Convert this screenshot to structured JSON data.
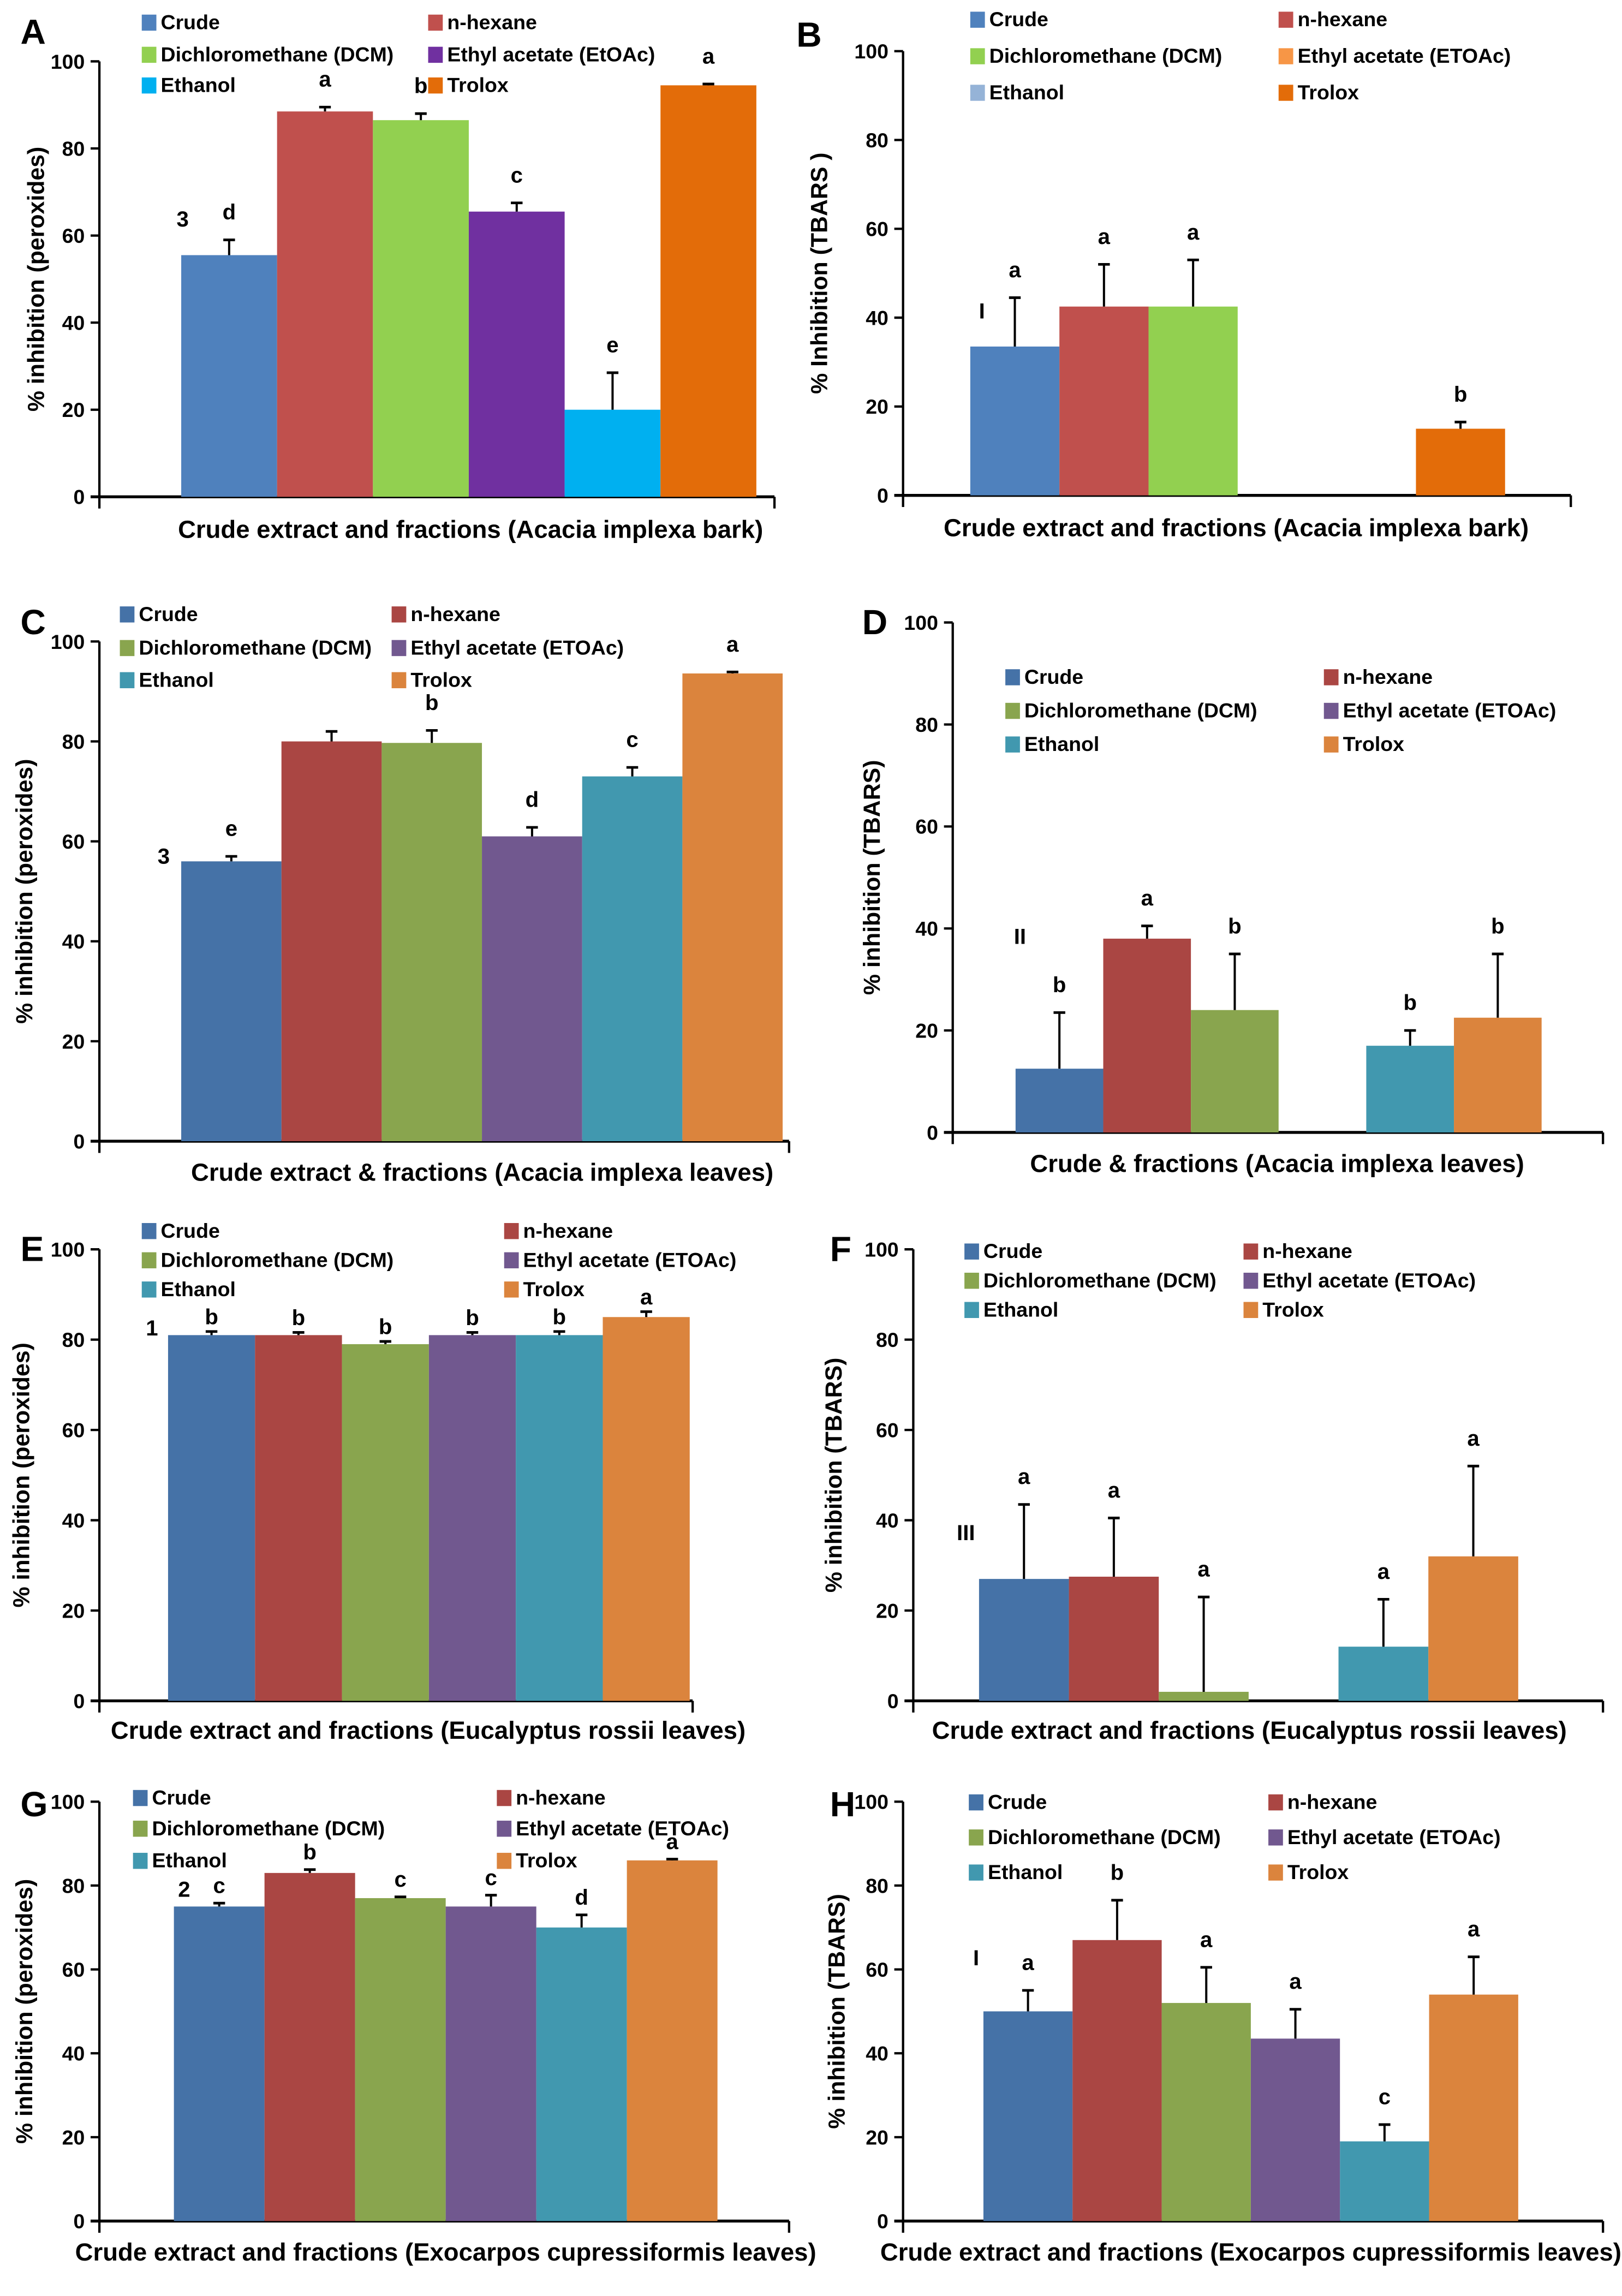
{
  "chart_data": [
    {
      "panel": "A",
      "type": "bar",
      "categories": [
        "Crude",
        "n-hexane",
        "Dichloromethane (DCM)",
        "Ethyl acetate (EtOAc)",
        "Ethanol",
        "Trolox"
      ],
      "values": [
        55.5,
        88.5,
        86.5,
        65.5,
        20,
        94.5
      ],
      "errors": [
        3.5,
        1,
        1.5,
        2,
        8.5,
        0.3
      ],
      "letters": [
        "d",
        "a",
        "b",
        "c",
        "e",
        "a"
      ],
      "group_label": "3",
      "colors": [
        "#4f81bd",
        "#c0504d",
        "#92d050",
        "#7030a0",
        "#00b0f0",
        "#e36c09"
      ],
      "ylabel": "% inhibition (peroxides)",
      "xlabel": "Crude extract and fractions (Acacia implexa bark)",
      "ylim": [
        0,
        100
      ],
      "yticks": [
        0,
        20,
        40,
        60,
        80,
        100
      ],
      "legend": "top"
    },
    {
      "panel": "B",
      "type": "bar",
      "categories": [
        "Crude",
        "n-hexane",
        "Dichloromethane (DCM)",
        "Ethyl acetate (ETOAc)",
        "Ethanol",
        "Trolox"
      ],
      "values": [
        33.5,
        42.5,
        42.5,
        null,
        null,
        15
      ],
      "errors": [
        11,
        9.5,
        10.5,
        null,
        null,
        1.5
      ],
      "letters": [
        "a",
        "a",
        "a",
        "",
        "",
        "b"
      ],
      "group_label": "I",
      "colors": [
        "#4f81bd",
        "#c0504d",
        "#92d050",
        "#f79646",
        "#95b3d7",
        "#e36c09"
      ],
      "ylabel": "% Inhibition (TBARS )",
      "xlabel": "Crude extract and fractions (Acacia implexa bark)",
      "ylim": [
        0,
        100
      ],
      "yticks": [
        0,
        20,
        40,
        60,
        80,
        100
      ],
      "legend": "top"
    },
    {
      "panel": "C",
      "type": "bar",
      "categories": [
        "Crude",
        "n-hexane",
        "Dichloromethane (DCM)",
        "Ethyl acetate (ETOAc)",
        "Ethanol",
        "Trolox"
      ],
      "values": [
        56,
        80,
        79.7,
        61,
        73,
        93.6
      ],
      "errors": [
        1,
        2,
        2.5,
        1.8,
        1.8,
        0.3
      ],
      "letters": [
        "e",
        "",
        "b",
        "d",
        "c",
        "a"
      ],
      "group_label": "3",
      "colors": [
        "#4572a7",
        "#aa4643",
        "#89a54e",
        "#71588f",
        "#4198af",
        "#db843d"
      ],
      "ylabel": "% inhibition (peroxides)",
      "xlabel": "Crude extract & fractions (Acacia implexa leaves)",
      "ylim": [
        0,
        100
      ],
      "yticks": [
        0,
        20,
        40,
        60,
        80,
        100
      ],
      "legend": "top"
    },
    {
      "panel": "D",
      "type": "bar",
      "categories": [
        "Crude",
        "n-hexane",
        "Dichloromethane (DCM)",
        "Ethyl acetate (ETOAc)",
        "Ethanol",
        "Trolox"
      ],
      "values": [
        12.5,
        38,
        24,
        null,
        17,
        22.5
      ],
      "errors": [
        11,
        2.5,
        11,
        null,
        3,
        12.5
      ],
      "letters": [
        "b",
        "a",
        "b",
        "",
        "b",
        "b"
      ],
      "group_label": "II",
      "colors": [
        "#4572a7",
        "#aa4643",
        "#89a54e",
        "#71588f",
        "#4198af",
        "#db843d"
      ],
      "ylabel": "% inhibition (TBARS)",
      "xlabel": "Crude & fractions (Acacia implexa leaves)",
      "ylim": [
        0,
        100
      ],
      "yticks": [
        0,
        20,
        40,
        60,
        80,
        100
      ],
      "legend": "top"
    },
    {
      "panel": "E",
      "type": "bar",
      "categories": [
        "Crude",
        "n-hexane",
        "Dichloromethane (DCM)",
        "Ethyl acetate (ETOAc)",
        "Ethanol",
        "Trolox"
      ],
      "values": [
        81,
        81,
        79,
        81,
        81,
        85
      ],
      "errors": [
        0.8,
        0.6,
        0.6,
        0.6,
        0.8,
        1.2
      ],
      "letters": [
        "b",
        "b",
        "b",
        "b",
        "b",
        "a"
      ],
      "group_label": "1",
      "colors": [
        "#4572a7",
        "#aa4643",
        "#89a54e",
        "#71588f",
        "#4198af",
        "#db843d"
      ],
      "ylabel": "% inhibition (peroxides)",
      "xlabel": "Crude extract and fractions (Eucalyptus rossii leaves)",
      "ylim": [
        0,
        100
      ],
      "yticks": [
        0,
        20,
        40,
        60,
        80,
        100
      ],
      "legend": "top"
    },
    {
      "panel": "F",
      "type": "bar",
      "categories": [
        "Crude",
        "n-hexane",
        "Dichloromethane (DCM)",
        "Ethyl acetate (ETOAc)",
        "Ethanol",
        "Trolox"
      ],
      "values": [
        27,
        27.5,
        2,
        null,
        12,
        32
      ],
      "errors": [
        16.5,
        13,
        21,
        null,
        10.5,
        20
      ],
      "letters": [
        "a",
        "a",
        "a",
        "",
        "a",
        "a"
      ],
      "group_label": "III",
      "colors": [
        "#4572a7",
        "#aa4643",
        "#89a54e",
        "#71588f",
        "#4198af",
        "#db843d"
      ],
      "ylabel": "% inhibition (TBARS)",
      "xlabel": "Crude extract and fractions (Eucalyptus rossii leaves)",
      "ylim": [
        0,
        100
      ],
      "yticks": [
        0,
        20,
        40,
        60,
        80,
        100
      ],
      "legend": "top"
    },
    {
      "panel": "G",
      "type": "bar",
      "categories": [
        "Crude",
        "n-hexane",
        "Dichloromethane (DCM)",
        "Ethyl acetate (ETOAc)",
        "Ethanol",
        "Trolox"
      ],
      "values": [
        75,
        83,
        77,
        75,
        70,
        86
      ],
      "errors": [
        0.8,
        0.8,
        0.3,
        2.7,
        3,
        0.3
      ],
      "letters": [
        "c",
        "b",
        "c",
        "c",
        "d",
        "a"
      ],
      "group_label": "2",
      "colors": [
        "#4572a7",
        "#aa4643",
        "#89a54e",
        "#71588f",
        "#4198af",
        "#db843d"
      ],
      "ylabel": "% inhibition (peroxides)",
      "xlabel": "Crude extract and fractions (Exocarpos cupressiformis leaves)",
      "ylim": [
        0,
        100
      ],
      "yticks": [
        0,
        20,
        40,
        60,
        80,
        100
      ],
      "legend": "top"
    },
    {
      "panel": "H",
      "type": "bar",
      "categories": [
        "Crude",
        "n-hexane",
        "Dichloromethane (DCM)",
        "Ethyl acetate (ETOAc)",
        "Ethanol",
        "Trolox"
      ],
      "values": [
        50,
        67,
        52,
        43.5,
        19,
        54
      ],
      "errors": [
        5,
        9.5,
        8.5,
        7,
        4,
        9
      ],
      "letters": [
        "a",
        "b",
        "a",
        "a",
        "c",
        "a"
      ],
      "group_label": "I",
      "colors": [
        "#4572a7",
        "#aa4643",
        "#89a54e",
        "#71588f",
        "#4198af",
        "#db843d"
      ],
      "ylabel": "% inhibition (TBARS)",
      "xlabel": "Crude extract and fractions (Exocarpos cupressiformis leaves)",
      "ylim": [
        0,
        100
      ],
      "yticks": [
        0,
        20,
        40,
        60,
        80,
        100
      ],
      "legend": "top"
    }
  ]
}
